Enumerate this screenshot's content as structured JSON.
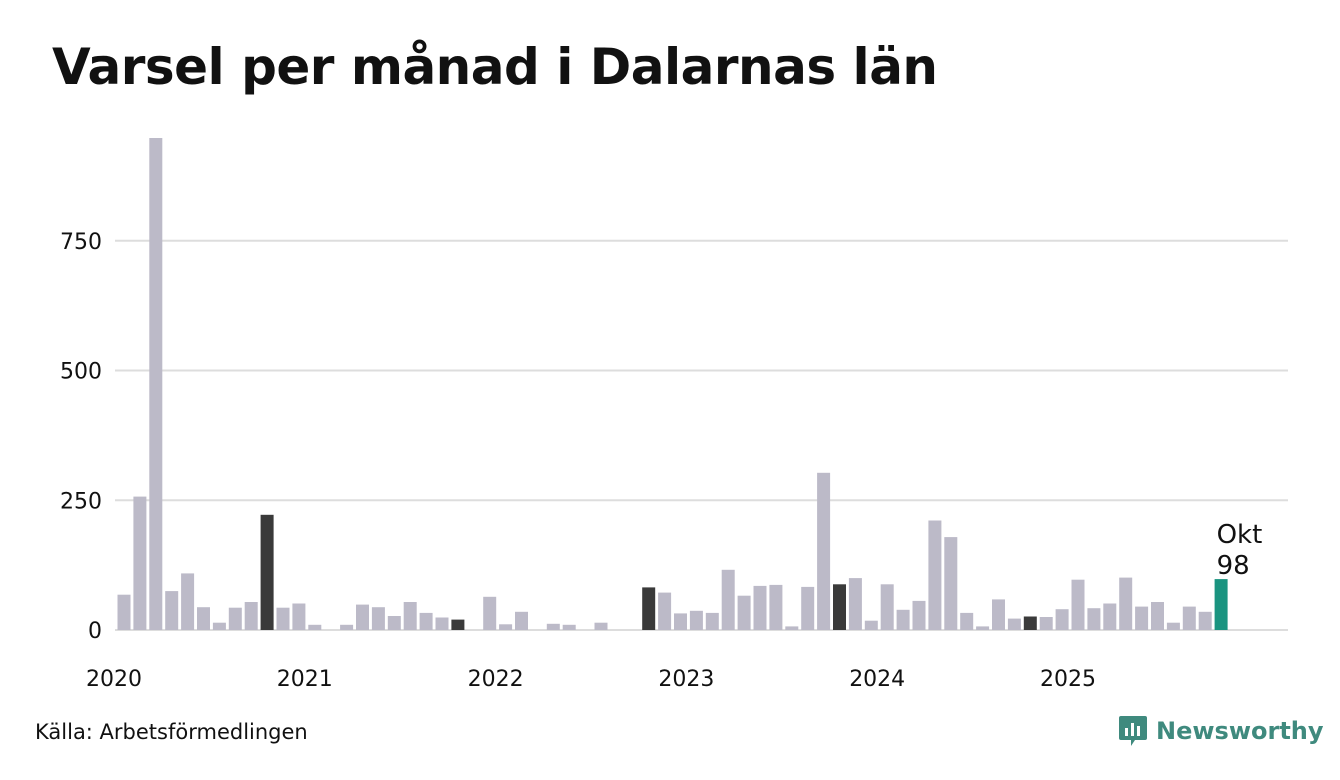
{
  "title": "Varsel per månad i Dalarnas län",
  "source": "Källa: Arbetsförmedlingen",
  "brand": {
    "name": "Newsworthy",
    "icon": "newsworthy-logo-icon"
  },
  "colors": {
    "bar": "#bcbac8",
    "highlight": "#3a3a3a",
    "latest": "#1a9480",
    "grid": "#dddddd",
    "brand": "#3f8a7e"
  },
  "chart_data": {
    "type": "bar",
    "title": "Varsel per månad i Dalarnas län",
    "xlabel": "",
    "ylabel": "",
    "ylim": [
      0,
      950
    ],
    "yticks": [
      0,
      250,
      500,
      750
    ],
    "year_labels": [
      "2020",
      "2021",
      "2022",
      "2023",
      "2024",
      "2025"
    ],
    "start": "2020-01",
    "highlight_month": "Okt",
    "values": [
      68,
      257,
      948,
      75,
      109,
      44,
      14,
      43,
      54,
      222,
      43,
      51,
      10,
      0,
      10,
      49,
      44,
      27,
      54,
      33,
      24,
      20,
      0,
      64,
      11,
      35,
      0,
      12,
      10,
      0,
      14,
      0,
      0,
      82,
      72,
      32,
      37,
      33,
      116,
      66,
      85,
      87,
      7,
      83,
      303,
      88,
      100,
      18,
      88,
      39,
      56,
      211,
      179,
      33,
      7,
      59,
      22,
      26,
      25,
      40,
      97,
      42,
      51,
      101,
      45,
      54,
      14,
      45,
      35,
      98
    ],
    "annotation": {
      "label": "Okt",
      "value": "98"
    }
  }
}
